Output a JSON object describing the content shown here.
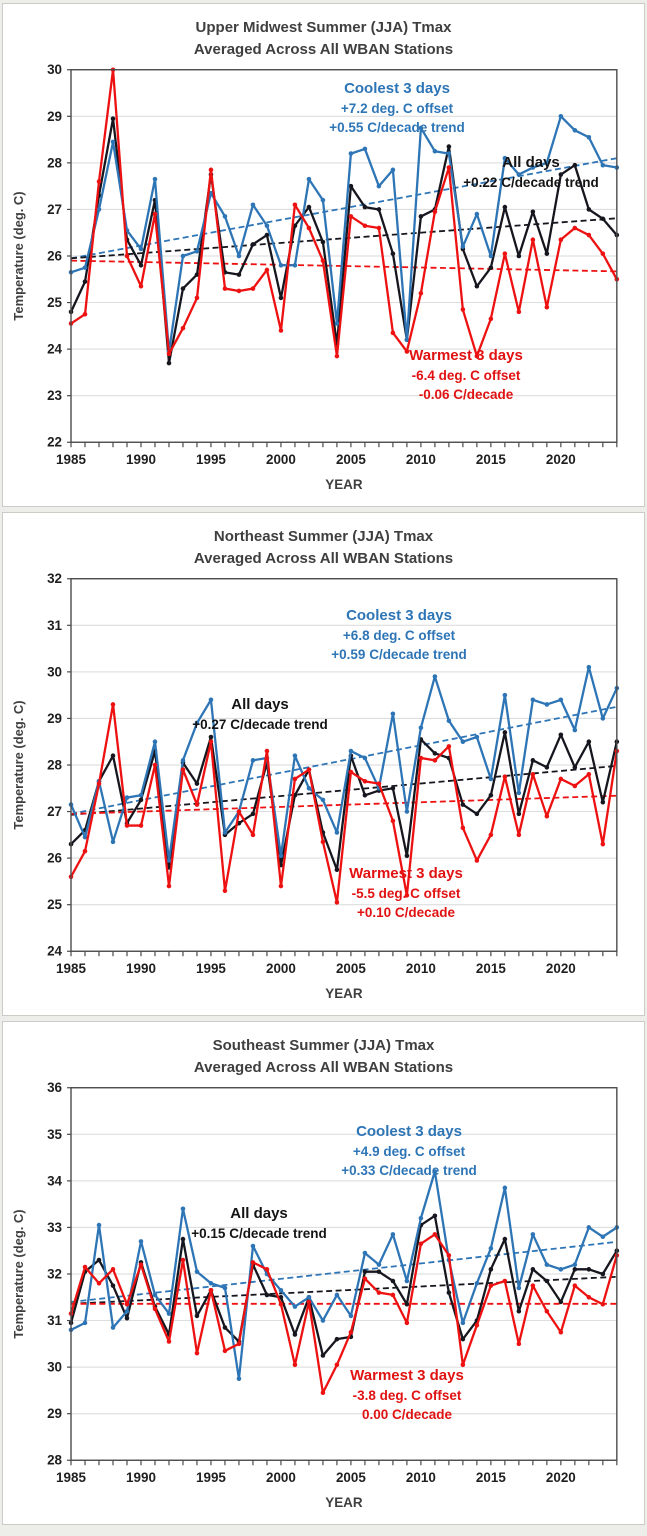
{
  "page": {
    "background_color": "#edeeea",
    "panel_background": "#ffffff",
    "panel_border_color": "#c9cdc6"
  },
  "colors": {
    "coolest": "#2E75B6",
    "all_days": "#16161F",
    "warmest": "#ED1111",
    "grid": "#D9D9D9",
    "axis_frame": "#4a4a4a",
    "tick_label": "#1f1f1f",
    "axis_label": "#3f3f3f",
    "title": "#3f3f3f"
  },
  "axis": {
    "xlabel": "YEAR",
    "ylabel": "Temperature (deg. C)",
    "x_tick_labels": [
      1985,
      1990,
      1995,
      2000,
      2005,
      2010,
      2015,
      2020
    ],
    "x_range": [
      1985,
      2024
    ],
    "x_step": 1,
    "grid": true,
    "legend_position": "inside-annotations"
  },
  "chart_data": [
    {
      "type": "line",
      "region": "Upper Midwest",
      "title_line1": "Upper Midwest Summer (JJA) Tmax",
      "title_line2": "Averaged Across All WBAN Stations",
      "xlabel": "YEAR",
      "ylabel": "Temperature (deg. C)",
      "ylim": [
        22,
        30
      ],
      "x": [
        1985,
        1986,
        1987,
        1988,
        1989,
        1990,
        1991,
        1992,
        1993,
        1994,
        1995,
        1996,
        1997,
        1998,
        1999,
        2000,
        2001,
        2002,
        2003,
        2004,
        2005,
        2006,
        2007,
        2008,
        2009,
        2010,
        2011,
        2012,
        2013,
        2014,
        2015,
        2016,
        2017,
        2018,
        2019,
        2020,
        2021,
        2022,
        2023,
        2024
      ],
      "series": {
        "coolest": {
          "label": "Coolest 3 days",
          "offset_label": "+7.2 deg. C offset",
          "trend_label": "+0.55 C/decade trend",
          "color": "#2E75B6",
          "values": [
            25.65,
            25.75,
            27.0,
            28.45,
            26.55,
            26.15,
            27.65,
            23.95,
            26.0,
            26.1,
            27.35,
            26.85,
            26.0,
            27.1,
            26.65,
            25.8,
            25.8,
            27.65,
            27.2,
            24.55,
            28.2,
            28.3,
            27.5,
            27.85,
            24.2,
            28.75,
            28.25,
            28.2,
            26.2,
            26.9,
            26.0,
            28.1,
            27.75,
            27.9,
            28.0,
            29.0,
            28.7,
            28.55,
            27.95,
            27.9
          ],
          "trend_endpoints": [
            25.95,
            28.1
          ]
        },
        "all": {
          "label": "All days",
          "trend_label": "+0.22 C/decade trend",
          "color": "#16161F",
          "values": [
            24.8,
            25.45,
            27.3,
            28.95,
            26.35,
            25.8,
            27.2,
            23.7,
            25.3,
            25.6,
            27.75,
            25.65,
            25.6,
            26.25,
            26.45,
            25.1,
            26.65,
            27.05,
            26.3,
            24.1,
            27.5,
            27.05,
            27.0,
            26.05,
            24.2,
            26.85,
            27.0,
            28.35,
            26.15,
            25.35,
            25.75,
            27.05,
            26.0,
            26.95,
            26.05,
            27.75,
            27.95,
            27.0,
            26.8,
            26.45
          ],
          "trend_endpoints": [
            25.95,
            26.81
          ]
        },
        "warmest": {
          "label": "Warmest 3 days",
          "offset_label": "-6.4 deg. C offset",
          "trend_label": "-0.06 C/decade",
          "color": "#ED1111",
          "values": [
            24.55,
            24.75,
            27.6,
            30.0,
            26.0,
            25.35,
            26.9,
            23.9,
            24.45,
            25.1,
            27.85,
            25.3,
            25.25,
            25.3,
            25.7,
            24.4,
            27.1,
            26.6,
            25.9,
            23.85,
            26.85,
            26.65,
            26.6,
            24.35,
            23.95,
            25.2,
            26.95,
            27.9,
            24.85,
            23.85,
            24.65,
            26.05,
            24.8,
            26.35,
            24.9,
            26.35,
            26.6,
            26.45,
            26.05,
            25.5
          ],
          "trend_endpoints": [
            25.9,
            25.67
          ]
        }
      }
    },
    {
      "type": "line",
      "region": "Northeast",
      "title_line1": "Northeast Summer (JJA) Tmax",
      "title_line2": "Averaged Across All WBAN Stations",
      "xlabel": "YEAR",
      "ylabel": "Temperature (deg. C)",
      "ylim": [
        24,
        32
      ],
      "x": [
        1985,
        1986,
        1987,
        1988,
        1989,
        1990,
        1991,
        1992,
        1993,
        1994,
        1995,
        1996,
        1997,
        1998,
        1999,
        2000,
        2001,
        2002,
        2003,
        2004,
        2005,
        2006,
        2007,
        2008,
        2009,
        2010,
        2011,
        2012,
        2013,
        2014,
        2015,
        2016,
        2017,
        2018,
        2019,
        2020,
        2021,
        2022,
        2023,
        2024
      ],
      "series": {
        "coolest": {
          "label": "Coolest 3 days",
          "offset_label": "+6.8 deg. C offset",
          "trend_label": "+0.59 C/decade trend",
          "color": "#2E75B6",
          "values": [
            27.15,
            26.45,
            27.65,
            26.35,
            27.3,
            27.35,
            28.5,
            25.95,
            28.1,
            28.9,
            29.4,
            26.55,
            27.0,
            28.1,
            28.15,
            26.05,
            28.2,
            27.5,
            27.25,
            26.55,
            28.3,
            28.15,
            27.5,
            29.1,
            27.0,
            28.8,
            29.9,
            28.95,
            28.5,
            28.6,
            27.7,
            29.5,
            27.4,
            29.4,
            29.3,
            29.4,
            28.75,
            30.1,
            29.0,
            29.65
          ],
          "trend_endpoints": [
            26.95,
            29.25
          ]
        },
        "all": {
          "label": "All days",
          "trend_label": "+0.27 C/decade trend",
          "color": "#16161F",
          "values": [
            26.3,
            26.6,
            27.65,
            28.2,
            26.75,
            27.25,
            28.3,
            25.8,
            28.05,
            27.6,
            28.6,
            26.5,
            26.75,
            26.95,
            28.05,
            25.85,
            27.35,
            27.9,
            26.55,
            25.75,
            28.2,
            27.35,
            27.45,
            27.5,
            26.05,
            28.55,
            28.25,
            28.15,
            27.15,
            26.95,
            27.35,
            28.7,
            26.95,
            28.1,
            27.95,
            28.65,
            27.95,
            28.5,
            27.2,
            28.5
          ],
          "trend_endpoints": [
            26.93,
            27.98
          ]
        },
        "warmest": {
          "label": "Warmest 3 days",
          "offset_label": "-5.5 deg. C offset",
          "trend_label": "+0.10 C/decade",
          "color": "#ED1111",
          "values": [
            25.6,
            26.15,
            27.6,
            29.3,
            26.7,
            26.7,
            28.0,
            25.4,
            27.9,
            27.15,
            28.5,
            25.3,
            27.0,
            26.5,
            28.3,
            25.4,
            27.7,
            27.9,
            26.35,
            25.05,
            27.85,
            27.65,
            27.6,
            26.8,
            25.2,
            28.15,
            28.1,
            28.4,
            26.65,
            25.95,
            26.5,
            27.75,
            26.5,
            27.8,
            26.9,
            27.7,
            27.55,
            27.8,
            26.3,
            28.3
          ],
          "trend_endpoints": [
            26.95,
            27.34
          ]
        }
      }
    },
    {
      "type": "line",
      "region": "Southeast",
      "title_line1": "Southeast Summer (JJA) Tmax",
      "title_line2": "Averaged Across All WBAN Stations",
      "xlabel": "YEAR",
      "ylabel": "Temperature (deg. C)",
      "ylim": [
        28,
        36
      ],
      "x": [
        1985,
        1986,
        1987,
        1988,
        1989,
        1990,
        1991,
        1992,
        1993,
        1994,
        1995,
        1996,
        1997,
        1998,
        1999,
        2000,
        2001,
        2002,
        2003,
        2004,
        2005,
        2006,
        2007,
        2008,
        2009,
        2010,
        2011,
        2012,
        2013,
        2014,
        2015,
        2016,
        2017,
        2018,
        2019,
        2020,
        2021,
        2022,
        2023,
        2024
      ],
      "series": {
        "coolest": {
          "label": "Coolest 3 days",
          "offset_label": "+4.9 deg. C offset",
          "trend_label": "+0.33 C/decade trend",
          "color": "#2E75B6",
          "values": [
            30.8,
            30.95,
            33.05,
            30.85,
            31.2,
            32.7,
            31.55,
            31.15,
            33.4,
            32.05,
            31.8,
            31.7,
            29.75,
            32.6,
            32.0,
            31.65,
            31.3,
            31.5,
            31.0,
            31.55,
            31.1,
            32.45,
            32.2,
            32.85,
            31.85,
            33.2,
            34.2,
            32.3,
            30.95,
            31.8,
            32.55,
            33.85,
            31.7,
            32.85,
            32.2,
            32.1,
            32.2,
            33.0,
            32.8,
            33.0
          ],
          "trend_endpoints": [
            31.4,
            32.69
          ]
        },
        "all": {
          "label": "All days",
          "trend_label": "+0.15 C/decade trend",
          "color": "#16161F",
          "values": [
            30.95,
            32.05,
            32.3,
            31.75,
            31.05,
            32.25,
            31.3,
            30.7,
            32.75,
            31.1,
            31.65,
            30.85,
            30.55,
            32.2,
            31.55,
            31.5,
            30.7,
            31.5,
            30.25,
            30.6,
            30.65,
            32.05,
            32.05,
            31.85,
            31.35,
            33.05,
            33.25,
            31.6,
            30.6,
            31.0,
            32.1,
            32.75,
            31.2,
            32.1,
            31.85,
            31.4,
            32.1,
            32.1,
            32.0,
            32.5
          ],
          "trend_endpoints": [
            31.36,
            31.94
          ]
        },
        "warmest": {
          "label": "Warmest 3 days",
          "offset_label": "-3.8 deg. C offset",
          "trend_label": "0.00 C/decade",
          "color": "#ED1111",
          "values": [
            31.15,
            32.15,
            31.8,
            32.1,
            31.35,
            32.2,
            31.25,
            30.55,
            32.3,
            30.3,
            31.65,
            30.35,
            30.5,
            32.25,
            32.1,
            31.35,
            30.05,
            31.4,
            29.45,
            30.05,
            30.75,
            31.9,
            31.6,
            31.55,
            30.95,
            32.65,
            32.85,
            32.4,
            30.05,
            30.9,
            31.75,
            31.85,
            30.5,
            31.75,
            31.2,
            30.75,
            31.75,
            31.5,
            31.35,
            32.4
          ],
          "trend_endpoints": [
            31.36,
            31.36
          ]
        }
      }
    }
  ]
}
